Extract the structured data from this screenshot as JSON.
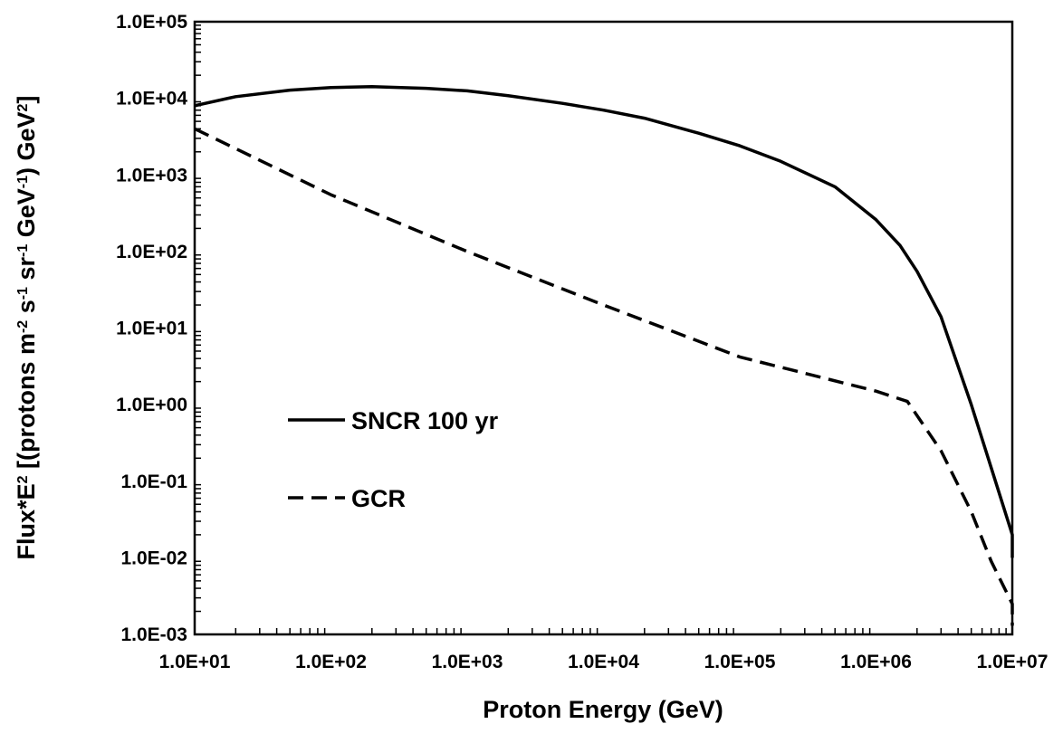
{
  "chart_data": {
    "type": "line",
    "xscale": "log",
    "yscale": "log",
    "xlim": [
      10,
      10000000
    ],
    "ylim": [
      0.001,
      100000
    ],
    "grid": false,
    "legend_position": "middle-left",
    "xlabel": "Proton Energy (GeV)",
    "ylabel": {
      "parts": [
        {
          "text": "Flux*E",
          "sup": false
        },
        {
          "text": "2",
          "sup": true
        },
        {
          "text": " [(protons m",
          "sup": false
        },
        {
          "text": "-2",
          "sup": true
        },
        {
          "text": " s",
          "sup": false
        },
        {
          "text": "-1",
          "sup": true
        },
        {
          "text": " sr",
          "sup": false
        },
        {
          "text": "-1",
          "sup": true
        },
        {
          "text": " GeV",
          "sup": false
        },
        {
          "text": "-1",
          "sup": true
        },
        {
          "text": ") GeV",
          "sup": false
        },
        {
          "text": "2",
          "sup": true
        },
        {
          "text": "]",
          "sup": false
        }
      ]
    },
    "x_ticks": [
      "1.0E+01",
      "1.0E+02",
      "1.0E+03",
      "1.0E+04",
      "1.0E+05",
      "1.0E+06",
      "1.0E+07"
    ],
    "y_ticks": [
      "1.0E-03",
      "1.0E-02",
      "1.0E-01",
      "1.0E+00",
      "1.0E+01",
      "1.0E+02",
      "1.0E+03",
      "1.0E+04",
      "1.0E+05"
    ],
    "series": [
      {
        "name": "SNCR 100 yr",
        "style": "solid",
        "color": "#000000",
        "x": [
          10,
          20,
          50,
          100,
          200,
          500,
          1000,
          2000,
          5000,
          10000,
          20000,
          50000,
          100000,
          200000,
          500000,
          1000000,
          1500000,
          2000000,
          3000000,
          5000000,
          7000000,
          10000000,
          11000000
        ],
        "y": [
          8000,
          10500,
          12800,
          13800,
          14200,
          13500,
          12500,
          10800,
          8600,
          7000,
          5500,
          3500,
          2400,
          1500,
          700,
          260,
          120,
          55,
          14,
          1.0,
          0.15,
          0.02,
          0.01
        ]
      },
      {
        "name": "GCR",
        "style": "dashed",
        "color": "#000000",
        "x": [
          10,
          100,
          1000,
          10000,
          100000,
          1000000,
          1700000,
          3000000,
          5000000,
          7000000,
          10000000,
          11000000
        ],
        "y": [
          4000,
          550,
          100,
          20,
          4.2,
          1.5,
          1.1,
          0.25,
          0.04,
          0.009,
          0.0025,
          0.0013
        ]
      }
    ]
  }
}
